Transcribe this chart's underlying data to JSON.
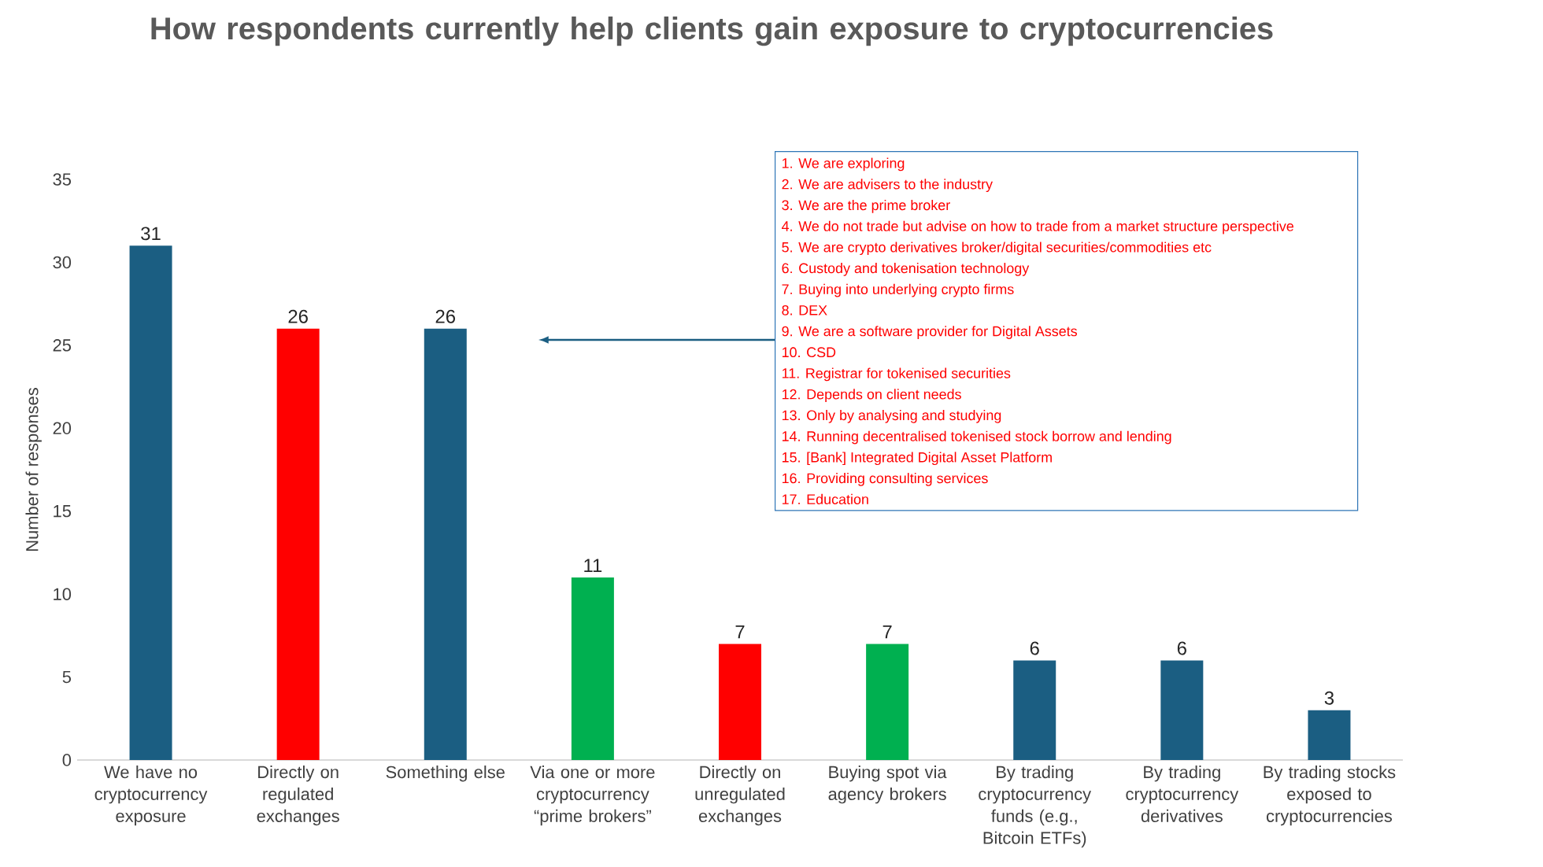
{
  "chart_data": {
    "type": "bar",
    "title": "How respondents currently help clients gain exposure to cryptocurrencies",
    "ylabel": "Number  of responses",
    "categories": [
      "We have no cryptocurrency exposure",
      "Directly on regulated exchanges",
      "Something else",
      "Via one or more cryptocurrency “prime brokers”",
      "Directly on unregulated exchanges",
      "Buying spot via agency brokers",
      "By trading cryptocurrency funds (e.g., Bitcoin ETFs)",
      "By trading cryptocurrency derivatives",
      "By trading stocks exposed to cryptocurrencies"
    ],
    "values": [
      31,
      26,
      26,
      11,
      7,
      7,
      6,
      6,
      3
    ],
    "colors": [
      "#1b5e82",
      "#ff0000",
      "#1b5e82",
      "#00b050",
      "#ff0000",
      "#00b050",
      "#1b5e82",
      "#1b5e82",
      "#1b5e82"
    ],
    "ylim": [
      0,
      35
    ],
    "yticks": [
      0,
      5,
      10,
      15,
      20,
      25,
      30,
      35
    ],
    "data_labels": true,
    "grid": false,
    "annotations": [
      "1. We are exploring",
      "2. We are advisers to the industry",
      "3. We are the prime broker",
      "4. We do not trade but advise on how to trade from a market structure perspective",
      "5. We are crypto derivatives broker/digital securities/commodities etc",
      "6. Custody and tokenisation technology",
      "7. Buying into underlying crypto firms",
      "8. DEX",
      "9. We are a software provider for Digital Assets",
      "10. CSD",
      "11. Registrar for tokenised securities",
      "12. Depends on client needs",
      "13. Only by analysing and studying",
      "14. Running decentralised tokenised stock borrow and lending",
      "15. [Bank] Integrated Digital Asset Platform",
      "16. Providing consulting services",
      "17. Education"
    ]
  }
}
